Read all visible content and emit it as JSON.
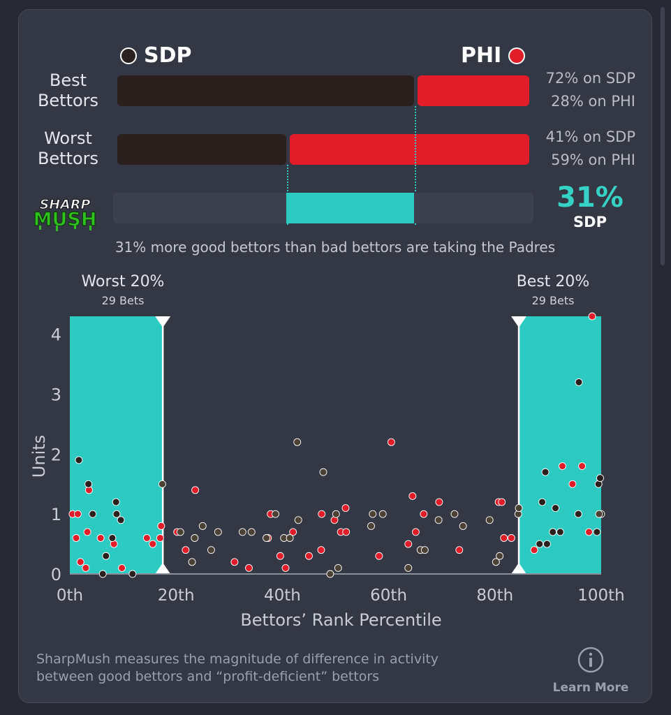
{
  "teams": {
    "left": {
      "abbr": "SDP",
      "color": "#2a211e"
    },
    "right": {
      "abbr": "PHI",
      "color": "#e31c2a"
    }
  },
  "rows": [
    {
      "label_line1": "Best",
      "label_line2": "Bettors",
      "left_pct": 72,
      "right_pct": 28,
      "left_text": "72% on SDP",
      "right_text": "28% on PHI"
    },
    {
      "label_line1": "Worst",
      "label_line2": "Bettors",
      "left_pct": 41,
      "right_pct": 59,
      "left_text": "41% on SDP",
      "right_text": "59% on PHI"
    }
  ],
  "sharpmush": {
    "logo_line1": "SHARP",
    "logo_line2": "MUSH",
    "value": "31%",
    "team": "SDP",
    "accent": "#2ccac0",
    "summary": "31% more good bettors than bad bettors are taking the Padres"
  },
  "zones": {
    "worst": {
      "title": "Worst 20%",
      "sub": "29 Bets",
      "range": [
        0,
        17.5
      ]
    },
    "best": {
      "title": "Best 20%",
      "sub": "29 Bets",
      "range": [
        84.5,
        100
      ]
    }
  },
  "chart_data": {
    "type": "scatter",
    "xlabel": "Bettors’ Rank Percentile",
    "ylabel": "Units",
    "xlim": [
      0,
      100
    ],
    "ylim": [
      0,
      4.3
    ],
    "xticks": [
      "0th",
      "20th",
      "40th",
      "60th",
      "80th",
      "100th"
    ],
    "xtick_values": [
      0,
      20,
      40,
      60,
      80,
      100
    ],
    "yticks": [
      0,
      1,
      2,
      3,
      4
    ],
    "series": [
      {
        "color": "#e31c2a",
        "points": [
          [
            0.5,
            1.0
          ],
          [
            1.2,
            0.6
          ],
          [
            1.5,
            1.0
          ],
          [
            2.0,
            0.2
          ],
          [
            3.0,
            0.1
          ],
          [
            3.3,
            0.7
          ],
          [
            3.6,
            1.4
          ],
          [
            5.8,
            0.6
          ],
          [
            8.3,
            0.5
          ],
          [
            9.8,
            0.1
          ],
          [
            14.5,
            0.6
          ],
          [
            15.6,
            0.5
          ],
          [
            17.0,
            0.6
          ],
          [
            17.2,
            0.8
          ],
          [
            20.2,
            0.7
          ],
          [
            21.8,
            0.4
          ],
          [
            23.6,
            1.4
          ],
          [
            31.0,
            0.2
          ],
          [
            33.7,
            0.1
          ],
          [
            37.8,
            1.0
          ],
          [
            37.3,
            0.6
          ],
          [
            39.6,
            0.3
          ],
          [
            40.6,
            0.1
          ],
          [
            42.0,
            0.7
          ],
          [
            45.0,
            0.3
          ],
          [
            47.3,
            0.4
          ],
          [
            47.4,
            1.0
          ],
          [
            49.8,
            0.9
          ],
          [
            51.0,
            0.7
          ],
          [
            51.9,
            1.1
          ],
          [
            52.0,
            0.7
          ],
          [
            58.2,
            0.3
          ],
          [
            60.5,
            2.2
          ],
          [
            63.7,
            0.5
          ],
          [
            64.5,
            1.3
          ],
          [
            65.1,
            0.7
          ],
          [
            66.6,
            1.0
          ],
          [
            69.5,
            1.2
          ],
          [
            73.3,
            0.4
          ],
          [
            80.7,
            1.2
          ],
          [
            81.3,
            1.2
          ],
          [
            81.7,
            0.6
          ],
          [
            83.1,
            0.6
          ],
          [
            87.4,
            0.4
          ],
          [
            92.7,
            1.8
          ],
          [
            94.6,
            1.5
          ],
          [
            96.4,
            1.8
          ],
          [
            97.7,
            0.7
          ],
          [
            98.3,
            4.3
          ]
        ]
      },
      {
        "color": "#2a211e",
        "points": [
          [
            1.7,
            1.9
          ],
          [
            3.5,
            1.5
          ],
          [
            4.3,
            1.0
          ],
          [
            6.2,
            0.0
          ],
          [
            6.8,
            0.3
          ],
          [
            8.0,
            0.6
          ],
          [
            8.7,
            1.2
          ],
          [
            8.8,
            1.0
          ],
          [
            9.6,
            0.9
          ],
          [
            11.8,
            0.0
          ],
          [
            89.5,
            1.7
          ],
          [
            90.9,
            0.7
          ],
          [
            91.4,
            1.1
          ],
          [
            92.3,
            0.7
          ],
          [
            88.4,
            0.5
          ],
          [
            88.9,
            1.2
          ],
          [
            89.8,
            0.5
          ],
          [
            95.8,
            3.2
          ],
          [
            95.7,
            1.0
          ],
          [
            99.2,
            0.7
          ],
          [
            99.5,
            1.5
          ],
          [
            99.8,
            1.6
          ],
          [
            100.0,
            1.0
          ]
        ]
      },
      {
        "color": "#4b4135",
        "points": [
          [
            17.4,
            1.5
          ],
          [
            20.8,
            0.7
          ],
          [
            23.0,
            0.2
          ],
          [
            23.5,
            0.6
          ],
          [
            25.0,
            0.8
          ],
          [
            26.6,
            0.4
          ],
          [
            27.9,
            0.7
          ],
          [
            32.5,
            0.7
          ],
          [
            34.2,
            0.7
          ],
          [
            37.0,
            0.6
          ],
          [
            38.7,
            1.0
          ],
          [
            40.3,
            0.6
          ],
          [
            41.4,
            0.6
          ],
          [
            42.8,
            2.2
          ],
          [
            43.0,
            0.9
          ],
          [
            47.7,
            1.7
          ],
          [
            49.0,
            0.0
          ],
          [
            50.1,
            1.0
          ],
          [
            50.5,
            0.1
          ],
          [
            56.7,
            0.8
          ],
          [
            57.0,
            1.0
          ],
          [
            58.9,
            1.0
          ],
          [
            63.7,
            0.1
          ],
          [
            66.0,
            0.4
          ],
          [
            66.8,
            0.4
          ],
          [
            69.4,
            0.9
          ],
          [
            72.4,
            1.0
          ],
          [
            74.0,
            0.8
          ],
          [
            79.0,
            0.9
          ],
          [
            80.2,
            0.2
          ],
          [
            80.9,
            0.3
          ],
          [
            84.4,
            1.0
          ],
          [
            84.5,
            1.1
          ],
          [
            99.6,
            1.0
          ]
        ]
      }
    ]
  },
  "footnote": {
    "line1": "SharpMush measures the magnitude of difference in activity",
    "line2": "between good bettors and “profit-deficient” bettors"
  },
  "learn_more": {
    "label": "Learn More",
    "icon": "info-icon"
  }
}
